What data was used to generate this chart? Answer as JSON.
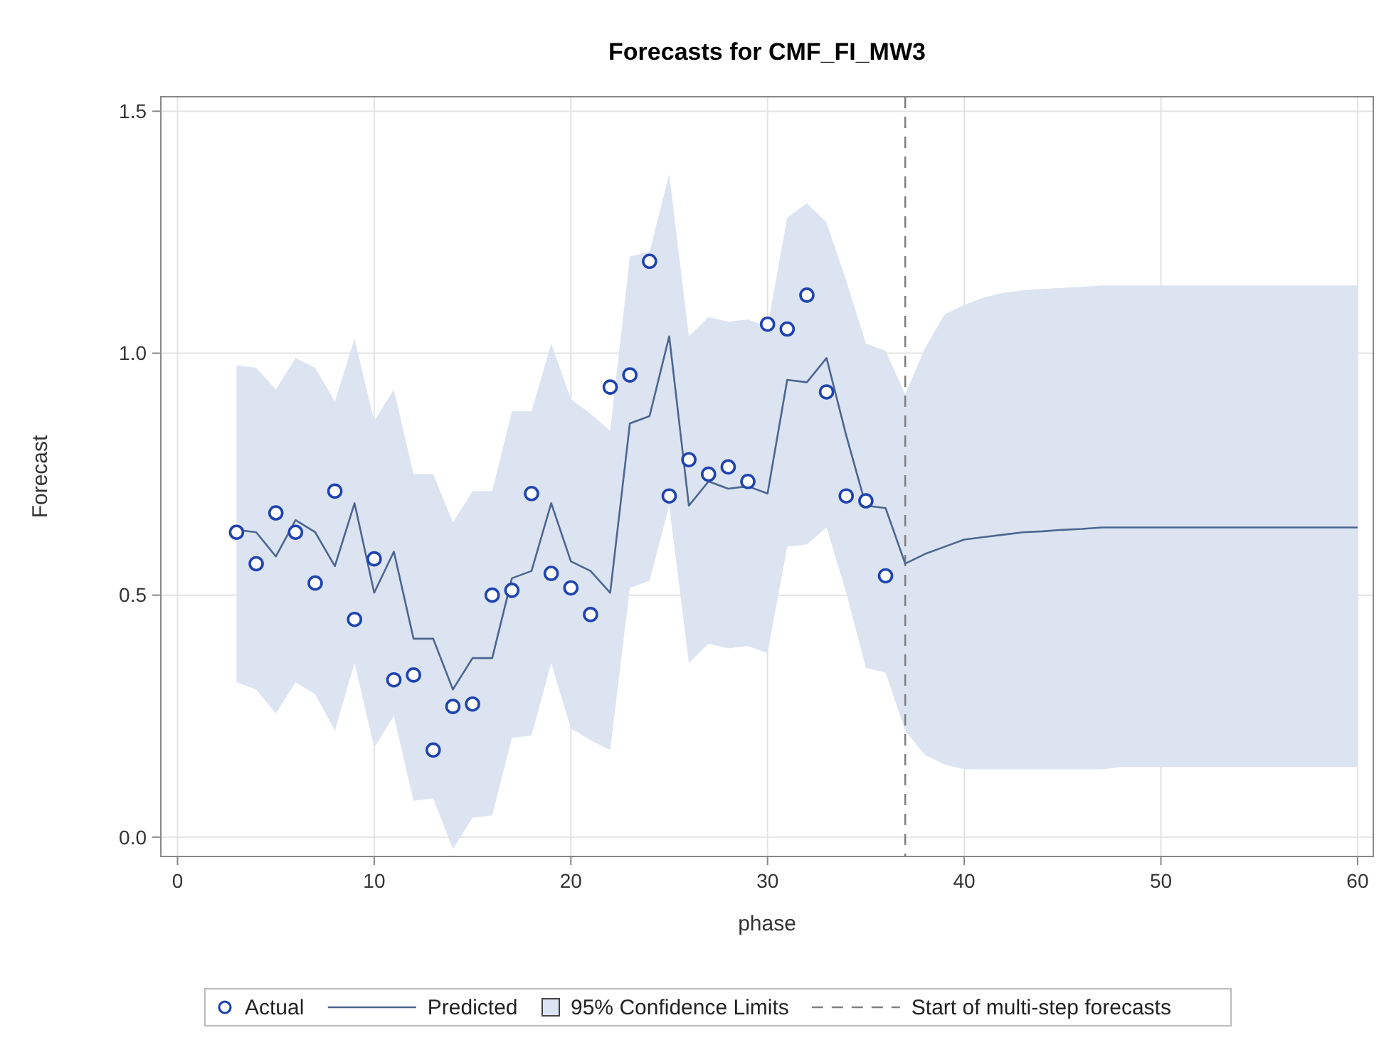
{
  "chart_data": {
    "type": "line",
    "title": "Forecasts for CMF_FI_MW3",
    "xlabel": "phase",
    "ylabel": "Forecast",
    "xlim": [
      -0.85,
      60.8
    ],
    "ylim": [
      -0.04,
      1.53
    ],
    "xticks": [
      0,
      10,
      20,
      30,
      40,
      50,
      60
    ],
    "yticks": [
      {
        "value": 0,
        "label": "0.0"
      },
      {
        "value": 0.5,
        "label": "0.5"
      },
      {
        "value": 1,
        "label": "1.0"
      },
      {
        "value": 1.5,
        "label": "1.5"
      }
    ],
    "grid": true,
    "legend": "bottom",
    "annotations": [
      "95% Confidence Limits"
    ],
    "series": [
      {
        "type": "scatter",
        "name": "Actual",
        "color": "#1f43b0",
        "marker": "circle",
        "x": [
          3,
          4,
          5,
          6,
          7,
          8,
          9,
          10,
          11,
          12,
          13,
          14,
          15,
          16,
          17,
          18,
          19,
          20,
          21,
          22,
          23,
          24,
          25,
          26,
          27,
          28,
          29,
          30,
          31,
          32,
          33,
          34,
          35,
          36
        ],
        "values": [
          0.63,
          0.565,
          0.67,
          0.63,
          0.525,
          0.715,
          0.45,
          0.575,
          0.325,
          0.335,
          0.18,
          0.27,
          0.275,
          0.5,
          0.51,
          0.71,
          0.545,
          0.515,
          0.46,
          0.93,
          0.955,
          1.19,
          0.705,
          0.78,
          0.75,
          0.765,
          0.735,
          1.06,
          1.05,
          1.12,
          0.92,
          0.705,
          0.695,
          0.54
        ]
      },
      {
        "name": "Predicted",
        "color": "#4d6690",
        "line_style": "solid",
        "marker": "none",
        "x": [
          3,
          4,
          5,
          6,
          7,
          8,
          9,
          10,
          11,
          12,
          13,
          14,
          15,
          16,
          17,
          18,
          19,
          20,
          21,
          22,
          23,
          24,
          25,
          26,
          27,
          28,
          29,
          30,
          31,
          32,
          33,
          34,
          35,
          36,
          37,
          38,
          39,
          40,
          41,
          42,
          43,
          44,
          45,
          46,
          47,
          48,
          49,
          50,
          51,
          52,
          53,
          54,
          55,
          56,
          57,
          58,
          59,
          60
        ],
        "values": [
          0.635,
          0.63,
          0.58,
          0.655,
          0.63,
          0.56,
          0.69,
          0.505,
          0.59,
          0.41,
          0.41,
          0.305,
          0.37,
          0.37,
          0.535,
          0.55,
          0.69,
          0.57,
          0.55,
          0.505,
          0.855,
          0.87,
          1.035,
          0.685,
          0.735,
          0.72,
          0.725,
          0.71,
          0.945,
          0.94,
          0.99,
          0.83,
          0.685,
          0.68,
          0.565,
          0.585,
          0.6,
          0.615,
          0.62,
          0.625,
          0.63,
          0.632,
          0.635,
          0.637,
          0.64,
          0.64,
          0.64,
          0.64,
          0.64,
          0.64,
          0.64,
          0.64,
          0.64,
          0.64,
          0.64,
          0.64,
          0.64,
          0.64
        ],
        "lower": [
          0.32,
          0.305,
          0.255,
          0.32,
          0.295,
          0.22,
          0.36,
          0.185,
          0.25,
          0.075,
          0.08,
          -0.025,
          0.04,
          0.045,
          0.205,
          0.21,
          0.36,
          0.225,
          0.2,
          0.18,
          0.515,
          0.53,
          0.685,
          0.36,
          0.4,
          0.39,
          0.395,
          0.38,
          0.6,
          0.605,
          0.64,
          0.505,
          0.35,
          0.34,
          0.22,
          0.17,
          0.15,
          0.14,
          0.14,
          0.14,
          0.14,
          0.14,
          0.14,
          0.14,
          0.14,
          0.145,
          0.145,
          0.145,
          0.145,
          0.145,
          0.145,
          0.145,
          0.145,
          0.145,
          0.145,
          0.145,
          0.145,
          0.145
        ],
        "upper": [
          0.975,
          0.97,
          0.925,
          0.99,
          0.97,
          0.9,
          1.03,
          0.86,
          0.925,
          0.75,
          0.75,
          0.65,
          0.715,
          0.715,
          0.88,
          0.88,
          1.02,
          0.905,
          0.875,
          0.84,
          1.2,
          1.21,
          1.37,
          1.035,
          1.075,
          1.065,
          1.07,
          1.055,
          1.28,
          1.31,
          1.27,
          1.15,
          1.02,
          1.005,
          0.915,
          1.01,
          1.08,
          1.1,
          1.115,
          1.125,
          1.13,
          1.133,
          1.135,
          1.137,
          1.14,
          1.14,
          1.14,
          1.14,
          1.14,
          1.14,
          1.14,
          1.14,
          1.14,
          1.14,
          1.14,
          1.14,
          1.14,
          1.14
        ]
      }
    ],
    "ref_lines": [
      {
        "axis": "x",
        "value": 37,
        "label": "Start of multi-step forecasts",
        "color": "#808080",
        "line_style": "dashed"
      }
    ]
  }
}
